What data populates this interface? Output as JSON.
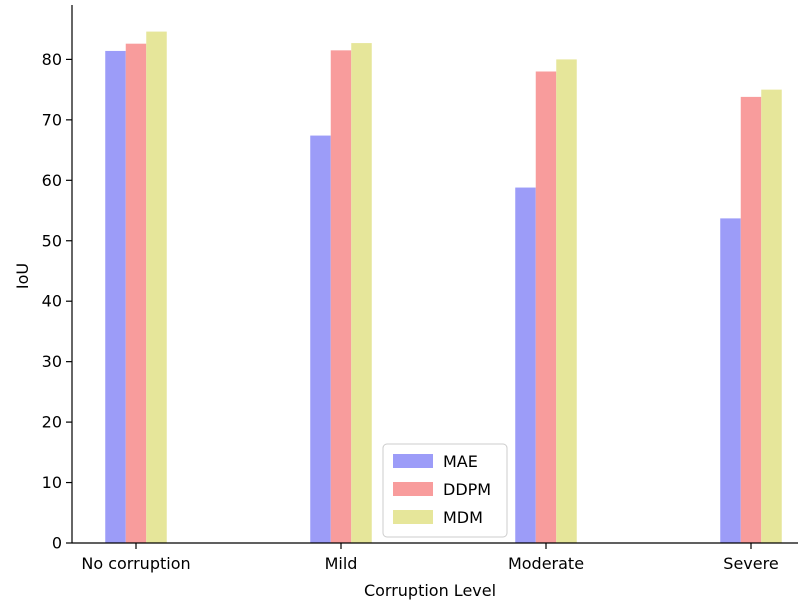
{
  "chart_data": {
    "type": "bar",
    "xlabel": "Corruption Level",
    "ylabel": "IoU",
    "ylim": [
      0,
      89
    ],
    "yticks": [
      0,
      10,
      20,
      30,
      40,
      50,
      60,
      70,
      80
    ],
    "categories": [
      "No corruption",
      "Mild",
      "Moderate",
      "Severe"
    ],
    "series": [
      {
        "name": "MAE",
        "values": [
          81.4,
          67.4,
          58.8,
          53.7
        ],
        "color": "#9c9cf8"
      },
      {
        "name": "DDPM",
        "values": [
          82.6,
          81.5,
          78.0,
          73.8
        ],
        "color": "#f89c9c"
      },
      {
        "name": "MDM",
        "values": [
          84.6,
          82.7,
          80.0,
          75.0
        ],
        "color": "#e6e69a"
      }
    ],
    "legend": {
      "placement": "lower-center"
    },
    "grid": false
  }
}
